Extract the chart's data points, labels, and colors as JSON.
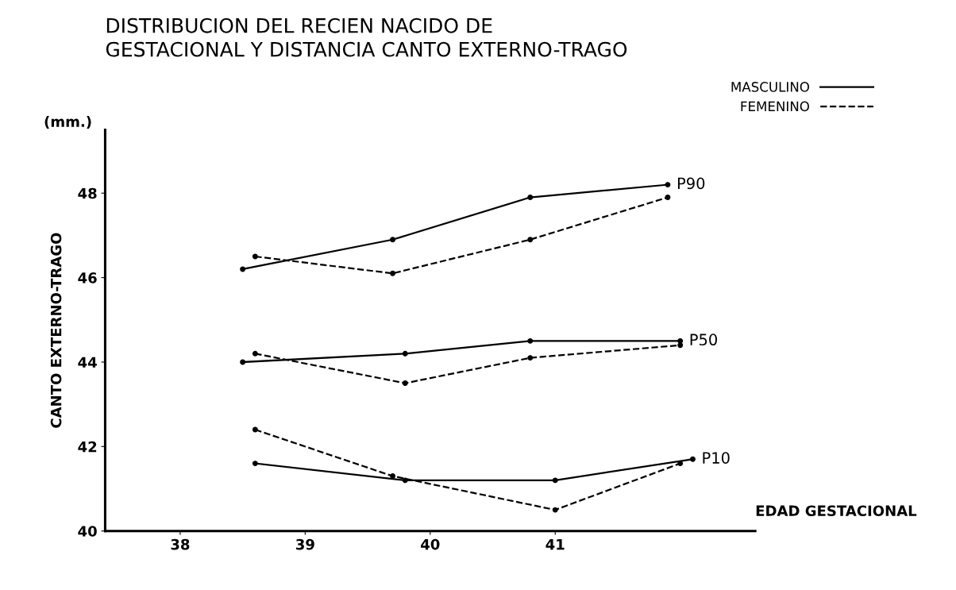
{
  "chart_data": {
    "type": "line",
    "title": "DISTRIBUCION DEL RECIEN NACIDO DE\nGESTACIONAL Y DISTANCIA CANTO EXTERNO-TRAGO",
    "xlabel": "EDAD GESTACIONAL",
    "ylabel": "CANTO EXTERNO-TRAGO",
    "annotations": [
      "(mm.)",
      {
        "text": "P90",
        "x": 41.9,
        "y": 48.2
      },
      {
        "text": "P50",
        "x": 42.0,
        "y": 44.5
      },
      {
        "text": "P10",
        "x": 42.1,
        "y": 41.7
      }
    ],
    "series": [
      {
        "name": "MASCULINO",
        "color": "#000000",
        "line_style": "solid",
        "x": [
          38.5,
          39.7,
          40.8,
          41.9
        ],
        "values": [
          46.2,
          46.9,
          47.9,
          48.2
        ]
      },
      {
        "name": "FEMENINO",
        "color": "#000000",
        "line_style": "dashed",
        "x": [
          38.6,
          39.7,
          40.8,
          41.9
        ],
        "values": [
          46.5,
          46.1,
          46.9,
          47.9
        ]
      },
      {
        "color": "#000000",
        "line_style": "solid",
        "x": [
          38.5,
          39.8,
          40.8,
          42.0
        ],
        "values": [
          44.0,
          44.2,
          44.5,
          44.5
        ]
      },
      {
        "color": "#000000",
        "line_style": "dashed",
        "x": [
          38.6,
          39.8,
          40.8,
          42.0
        ],
        "values": [
          44.2,
          43.5,
          44.1,
          44.4
        ]
      },
      {
        "color": "#000000",
        "line_style": "solid",
        "x": [
          38.6,
          39.8,
          41.0,
          42.1
        ],
        "values": [
          41.6,
          41.2,
          41.2,
          41.7
        ]
      },
      {
        "color": "#000000",
        "line_style": "dashed",
        "x": [
          38.6,
          39.7,
          41.0,
          42.0
        ],
        "values": [
          42.4,
          41.3,
          40.5,
          41.6
        ]
      }
    ],
    "xlim": [
      37.4,
      42.6
    ],
    "xticks": [
      38,
      39,
      40,
      41
    ],
    "ylim": [
      40,
      49.5
    ],
    "yticks": [
      40,
      42,
      44,
      46,
      48
    ],
    "marker": "circle",
    "legend": "top right",
    "grid": false
  }
}
